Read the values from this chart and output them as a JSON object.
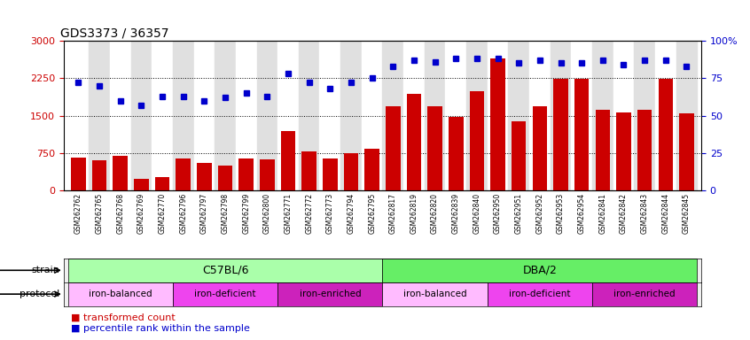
{
  "title": "GDS3373 / 36357",
  "samples": [
    "GSM262762",
    "GSM262765",
    "GSM262768",
    "GSM262769",
    "GSM262770",
    "GSM262796",
    "GSM262797",
    "GSM262798",
    "GSM262799",
    "GSM262800",
    "GSM262771",
    "GSM262772",
    "GSM262773",
    "GSM262794",
    "GSM262795",
    "GSM262817",
    "GSM262819",
    "GSM262820",
    "GSM262839",
    "GSM262840",
    "GSM262950",
    "GSM262951",
    "GSM262952",
    "GSM262953",
    "GSM262954",
    "GSM262841",
    "GSM262842",
    "GSM262843",
    "GSM262844",
    "GSM262845"
  ],
  "bar_values": [
    650,
    610,
    700,
    240,
    260,
    635,
    555,
    490,
    635,
    615,
    1190,
    790,
    640,
    740,
    840,
    1690,
    1940,
    1690,
    1470,
    1990,
    2640,
    1390,
    1690,
    2240,
    2240,
    1610,
    1570,
    1610,
    2240,
    1540
  ],
  "percentile_values": [
    72,
    70,
    60,
    57,
    63,
    63,
    60,
    62,
    65,
    63,
    78,
    72,
    68,
    72,
    75,
    83,
    87,
    86,
    88,
    88,
    88,
    85,
    87,
    85,
    85,
    87,
    84,
    87,
    87,
    83
  ],
  "bar_color": "#CC0000",
  "percentile_color": "#0000CC",
  "ylim_left": [
    0,
    3000
  ],
  "ylim_right": [
    0,
    100
  ],
  "yticks_left": [
    0,
    750,
    1500,
    2250,
    3000
  ],
  "yticks_right": [
    0,
    25,
    50,
    75,
    100
  ],
  "ytick_labels_right": [
    "0",
    "25",
    "50",
    "75",
    "100%"
  ],
  "strain_groups": [
    {
      "label": "C57BL/6",
      "start": 0,
      "end": 14
    },
    {
      "label": "DBA/2",
      "start": 15,
      "end": 29
    }
  ],
  "strain_colors": [
    "#AAFFAA",
    "#66EE66"
  ],
  "protocol_groups": [
    {
      "label": "iron-balanced",
      "start": 0,
      "end": 4
    },
    {
      "label": "iron-deficient",
      "start": 5,
      "end": 9
    },
    {
      "label": "iron-enriched",
      "start": 10,
      "end": 14
    },
    {
      "label": "iron-balanced",
      "start": 15,
      "end": 19
    },
    {
      "label": "iron-deficient",
      "start": 20,
      "end": 24
    },
    {
      "label": "iron-enriched",
      "start": 25,
      "end": 29
    }
  ],
  "protocol_color_map": {
    "iron-balanced": "#FFBBFF",
    "iron-deficient": "#EE44EE",
    "iron-enriched": "#CC22BB"
  },
  "bg_color": "#FFFFFF"
}
